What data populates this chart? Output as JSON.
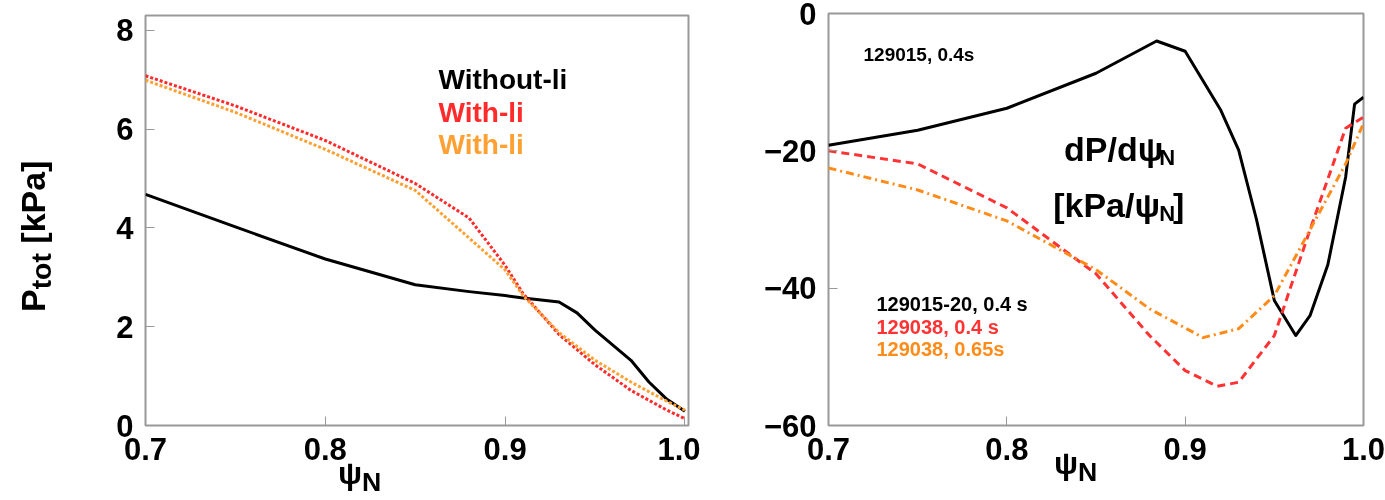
{
  "chart_data": [
    {
      "type": "line",
      "xlabel": "ψ$_{N}$",
      "ylabel": "P$_{tot}$ [kPa]",
      "xlim": [
        0.7,
        1.002
      ],
      "ylim": [
        0,
        8.3
      ],
      "xticks": [
        0.7,
        0.8,
        0.9,
        {
          "value": 1.0,
          "label": "1.0"
        }
      ],
      "yticks": [
        0,
        2,
        4,
        6,
        8
      ],
      "grid": false,
      "legend": "top right",
      "series": [
        {
          "name": "Without-li",
          "color": "#000000",
          "line_style": "solid",
          "x": [
            0.7,
            0.75,
            0.8,
            0.85,
            0.88,
            0.9,
            0.91,
            0.93,
            0.94,
            0.95,
            0.97,
            0.98,
            0.99,
            1.0
          ],
          "values": [
            4.68,
            4.02,
            3.37,
            2.85,
            2.71,
            2.63,
            2.58,
            2.5,
            2.28,
            1.93,
            1.32,
            0.88,
            0.53,
            0.29
          ]
        },
        {
          "name": "With-li",
          "color": "#ff2a2a",
          "line_style": "dotted",
          "x": [
            0.7,
            0.75,
            0.8,
            0.85,
            0.88,
            0.9,
            0.91,
            0.93,
            0.95,
            0.97,
            0.99,
            1.0
          ],
          "values": [
            7.08,
            6.47,
            5.77,
            4.9,
            4.2,
            3.24,
            2.67,
            1.84,
            1.23,
            0.71,
            0.31,
            0.14
          ]
        },
        {
          "name": "With-li",
          "color": "#ffa033",
          "line_style": "dotted",
          "x": [
            0.7,
            0.75,
            0.8,
            0.85,
            0.9,
            0.91,
            0.93,
            0.95,
            0.97,
            0.99,
            1.0
          ],
          "values": [
            6.99,
            6.34,
            5.59,
            4.76,
            3.15,
            2.63,
            1.88,
            1.32,
            0.88,
            0.49,
            0.31
          ]
        }
      ]
    },
    {
      "type": "line",
      "xlabel": "ψ$_{N}$",
      "xlim": [
        0.7,
        1.0
      ],
      "ylim": [
        -60,
        0
      ],
      "xticks": [
        0.7,
        0.8,
        0.9,
        {
          "value": 1.0,
          "label": "1.0"
        }
      ],
      "yticks": [
        -60,
        -40,
        -20,
        0
      ],
      "grid": false,
      "legend": "bottom left",
      "annotations": [
        "129015, 0.4s",
        "dP/dψ$_{N}$",
        "[kPa/ψ$_{N}$]"
      ],
      "series": [
        {
          "name": "129015-20, 0.4 s",
          "color": "#000000",
          "line_style": "solid",
          "x": [
            0.7,
            0.75,
            0.8,
            0.85,
            0.884,
            0.9,
            0.92,
            0.93,
            0.94,
            0.95,
            0.962,
            0.97,
            0.98,
            0.99,
            0.995,
            1.0
          ],
          "values": [
            -19.2,
            -17.0,
            -13.8,
            -8.7,
            -4.0,
            -5.5,
            -14.1,
            -19.9,
            -30,
            -41.8,
            -46.9,
            -44,
            -36.6,
            -23.8,
            -13.2,
            -12.2
          ]
        },
        {
          "name": "129038, 0.4 s",
          "color": "#ff3333",
          "line_style": "dashed",
          "x": [
            0.7,
            0.75,
            0.8,
            0.85,
            0.88,
            0.9,
            0.918,
            0.93,
            0.95,
            0.97,
            0.99,
            1.0
          ],
          "values": [
            -20,
            -21.9,
            -28.3,
            -37.9,
            -46.9,
            -52,
            -54.3,
            -53.7,
            -46.9,
            -31.5,
            -16.7,
            -15.1
          ]
        },
        {
          "name": "129038, 0.65s",
          "color": "#ff8c1a",
          "line_style": "dashdot",
          "x": [
            0.7,
            0.75,
            0.8,
            0.85,
            0.88,
            0.91,
            0.93,
            0.95,
            0.97,
            0.99,
            1.0
          ],
          "values": [
            -22.5,
            -25.7,
            -30.2,
            -37.3,
            -43,
            -47.2,
            -45.9,
            -41.1,
            -31.5,
            -21.9,
            -16
          ]
        }
      ]
    }
  ]
}
